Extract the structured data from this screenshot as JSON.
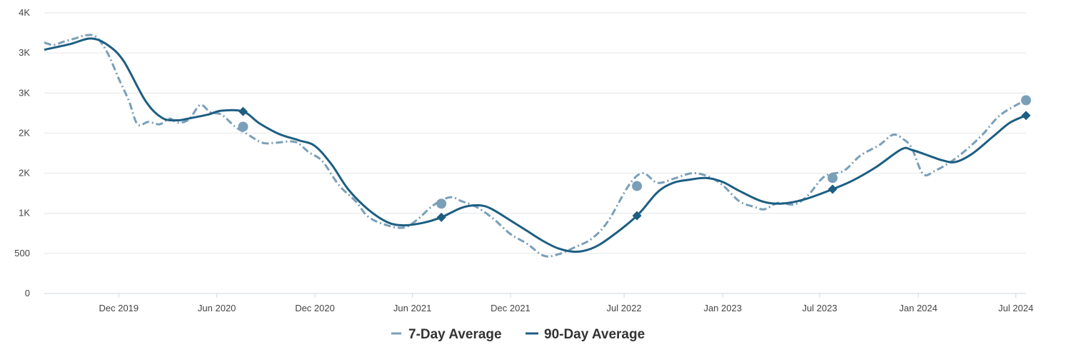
{
  "chart_data": {
    "type": "line",
    "title": "",
    "xlabel": "",
    "ylabel": "",
    "x_axis": {
      "range": [
        "2019-07-15",
        "2024-07-20"
      ],
      "ticks": [
        {
          "date": "2019-12-01",
          "label": "Dec 2019"
        },
        {
          "date": "2020-06-01",
          "label": "Jun 2020"
        },
        {
          "date": "2020-12-01",
          "label": "Dec 2020"
        },
        {
          "date": "2021-06-01",
          "label": "Jun 2021"
        },
        {
          "date": "2021-12-01",
          "label": "Dec 2021"
        },
        {
          "date": "2022-07-01",
          "label": "Jul 2022"
        },
        {
          "date": "2023-01-01",
          "label": "Jan 2023"
        },
        {
          "date": "2023-07-01",
          "label": "Jul 2023"
        },
        {
          "date": "2024-01-01",
          "label": "Jan 2024"
        },
        {
          "date": "2024-07-01",
          "label": "Jul 2024"
        }
      ]
    },
    "y_axis": {
      "range": [
        0,
        3500
      ],
      "ticks": [
        {
          "value": 0,
          "label": "0"
        },
        {
          "value": 500,
          "label": "500"
        },
        {
          "value": 1000,
          "label": "1K"
        },
        {
          "value": 1500,
          "label": "2K"
        },
        {
          "value": 2000,
          "label": "2K"
        },
        {
          "value": 2500,
          "label": "3K"
        },
        {
          "value": 3000,
          "label": "3K"
        },
        {
          "value": 3500,
          "label": "4K"
        }
      ]
    },
    "grid": true,
    "legend_position": "bottom-center",
    "series": [
      {
        "name": "7-Day Average",
        "style": "dashed",
        "color": "#7a9fb8",
        "marker": "circle",
        "points": [
          [
            "2019-07-15",
            3130
          ],
          [
            "2019-08-01",
            3100
          ],
          [
            "2019-08-20",
            3140
          ],
          [
            "2019-09-10",
            3180
          ],
          [
            "2019-10-01",
            3220
          ],
          [
            "2019-10-20",
            3200
          ],
          [
            "2019-11-10",
            3000
          ],
          [
            "2019-12-01",
            2680
          ],
          [
            "2019-12-20",
            2400
          ],
          [
            "2020-01-05",
            2110
          ],
          [
            "2020-01-25",
            2140
          ],
          [
            "2020-02-15",
            2110
          ],
          [
            "2020-03-05",
            2180
          ],
          [
            "2020-03-20",
            2130
          ],
          [
            "2020-04-10",
            2170
          ],
          [
            "2020-05-01",
            2350
          ],
          [
            "2020-05-20",
            2260
          ],
          [
            "2020-06-10",
            2230
          ],
          [
            "2020-07-05",
            2080
          ],
          [
            "2020-07-25",
            2000
          ],
          [
            "2020-08-25",
            1880
          ],
          [
            "2020-09-20",
            1880
          ],
          [
            "2020-10-25",
            1890
          ],
          [
            "2020-11-20",
            1760
          ],
          [
            "2020-12-15",
            1650
          ],
          [
            "2021-01-15",
            1350
          ],
          [
            "2021-02-15",
            1150
          ],
          [
            "2021-03-10",
            960
          ],
          [
            "2021-04-10",
            860
          ],
          [
            "2021-05-15",
            820
          ],
          [
            "2021-06-10",
            920
          ],
          [
            "2021-07-10",
            1100
          ],
          [
            "2021-08-10",
            1200
          ],
          [
            "2021-09-01",
            1150
          ],
          [
            "2021-10-01",
            1070
          ],
          [
            "2021-11-01",
            920
          ],
          [
            "2021-12-01",
            740
          ],
          [
            "2022-01-01",
            620
          ],
          [
            "2022-02-01",
            470
          ],
          [
            "2022-03-01",
            490
          ],
          [
            "2022-04-01",
            580
          ],
          [
            "2022-05-01",
            680
          ],
          [
            "2022-06-01",
            900
          ],
          [
            "2022-07-10",
            1350
          ],
          [
            "2022-08-05",
            1500
          ],
          [
            "2022-09-01",
            1380
          ],
          [
            "2022-10-01",
            1430
          ],
          [
            "2022-11-05",
            1500
          ],
          [
            "2022-12-05",
            1460
          ],
          [
            "2023-01-01",
            1350
          ],
          [
            "2023-02-01",
            1150
          ],
          [
            "2023-03-01",
            1080
          ],
          [
            "2023-03-20",
            1050
          ],
          [
            "2023-04-15",
            1130
          ],
          [
            "2023-05-15",
            1110
          ],
          [
            "2023-06-10",
            1230
          ],
          [
            "2023-07-10",
            1460
          ],
          [
            "2023-08-15",
            1530
          ],
          [
            "2023-09-15",
            1720
          ],
          [
            "2023-10-20",
            1850
          ],
          [
            "2023-11-15",
            1980
          ],
          [
            "2023-12-05",
            1920
          ],
          [
            "2023-12-20",
            1810
          ],
          [
            "2024-01-10",
            1490
          ],
          [
            "2024-02-01",
            1530
          ],
          [
            "2024-03-01",
            1640
          ],
          [
            "2024-04-01",
            1800
          ],
          [
            "2024-05-01",
            1990
          ],
          [
            "2024-06-01",
            2220
          ],
          [
            "2024-07-10",
            2380
          ],
          [
            "2024-07-20",
            2410
          ]
        ],
        "highlight_points": [
          [
            "2020-07-20",
            2080
          ],
          [
            "2021-07-25",
            1120
          ],
          [
            "2022-07-25",
            1340
          ],
          [
            "2023-07-25",
            1440
          ],
          [
            "2024-07-20",
            2410
          ]
        ]
      },
      {
        "name": "90-Day Average",
        "style": "solid",
        "color": "#1d5e82",
        "marker": "diamond",
        "points": [
          [
            "2019-07-15",
            3040
          ],
          [
            "2019-09-01",
            3110
          ],
          [
            "2019-10-10",
            3180
          ],
          [
            "2019-11-10",
            3100
          ],
          [
            "2019-12-10",
            2900
          ],
          [
            "2020-01-20",
            2400
          ],
          [
            "2020-02-20",
            2190
          ],
          [
            "2020-03-20",
            2160
          ],
          [
            "2020-04-15",
            2190
          ],
          [
            "2020-05-15",
            2230
          ],
          [
            "2020-06-10",
            2280
          ],
          [
            "2020-07-20",
            2270
          ],
          [
            "2020-08-20",
            2120
          ],
          [
            "2020-09-25",
            1990
          ],
          [
            "2020-11-01",
            1910
          ],
          [
            "2020-12-01",
            1840
          ],
          [
            "2021-01-01",
            1610
          ],
          [
            "2021-02-01",
            1300
          ],
          [
            "2021-03-10",
            1050
          ],
          [
            "2021-04-15",
            890
          ],
          [
            "2021-05-15",
            850
          ],
          [
            "2021-06-20",
            880
          ],
          [
            "2021-07-25",
            950
          ],
          [
            "2021-09-01",
            1070
          ],
          [
            "2021-10-01",
            1100
          ],
          [
            "2021-10-25",
            1060
          ],
          [
            "2021-12-01",
            910
          ],
          [
            "2022-01-01",
            780
          ],
          [
            "2022-02-01",
            650
          ],
          [
            "2022-03-01",
            560
          ],
          [
            "2022-04-01",
            520
          ],
          [
            "2022-05-01",
            560
          ],
          [
            "2022-06-01",
            680
          ],
          [
            "2022-07-25",
            970
          ],
          [
            "2022-09-01",
            1260
          ],
          [
            "2022-10-01",
            1380
          ],
          [
            "2022-11-01",
            1420
          ],
          [
            "2022-12-01",
            1440
          ],
          [
            "2023-01-01",
            1390
          ],
          [
            "2023-02-01",
            1280
          ],
          [
            "2023-03-15",
            1150
          ],
          [
            "2023-04-20",
            1120
          ],
          [
            "2023-06-01",
            1170
          ],
          [
            "2023-07-25",
            1300
          ],
          [
            "2023-09-01",
            1410
          ],
          [
            "2023-10-15",
            1580
          ],
          [
            "2023-12-01",
            1800
          ],
          [
            "2023-12-20",
            1790
          ],
          [
            "2024-01-20",
            1720
          ],
          [
            "2024-02-15",
            1660
          ],
          [
            "2024-03-10",
            1640
          ],
          [
            "2024-04-10",
            1740
          ],
          [
            "2024-05-20",
            1960
          ],
          [
            "2024-06-20",
            2130
          ],
          [
            "2024-07-20",
            2220
          ]
        ],
        "highlight_points": [
          [
            "2020-07-20",
            2270
          ],
          [
            "2021-07-25",
            950
          ],
          [
            "2022-07-25",
            970
          ],
          [
            "2023-07-25",
            1300
          ],
          [
            "2024-07-20",
            2220
          ]
        ]
      }
    ]
  }
}
